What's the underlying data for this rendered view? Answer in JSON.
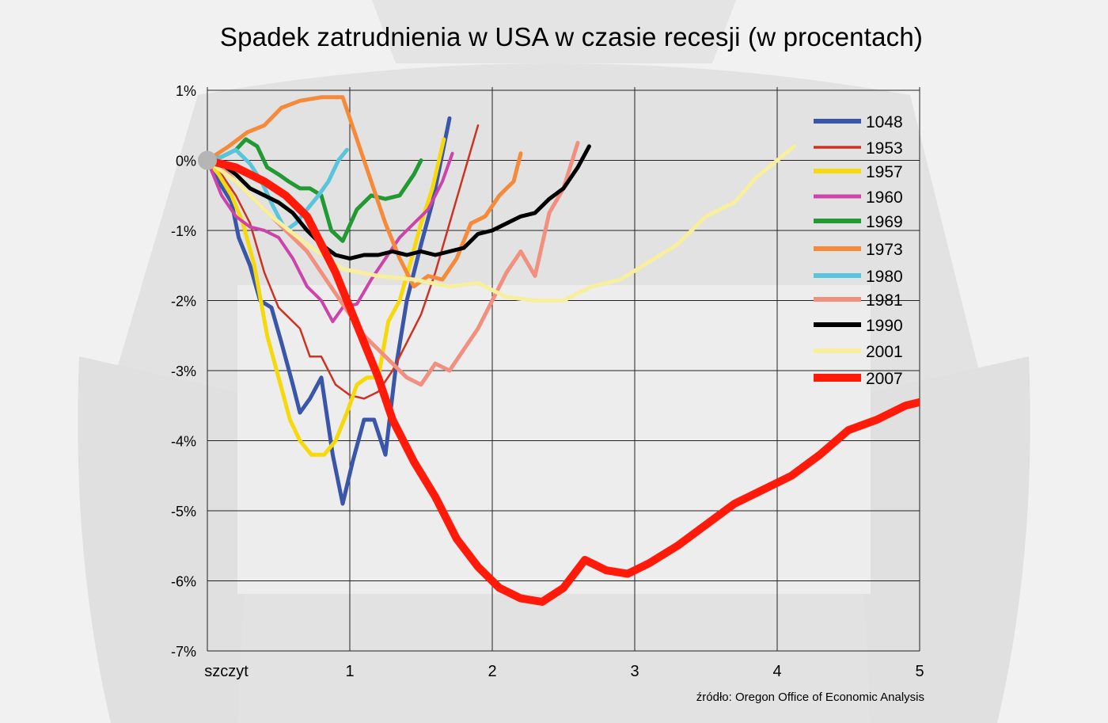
{
  "title": "Spadek zatrudnienia w USA w czasie recesji (w procentach)",
  "source": "źródło: Oregon Office of Economic Analysis",
  "chart_data": {
    "type": "line",
    "title": "Spadek zatrudnienia w USA w czasie recesji (w procentach)",
    "xlim": [
      0,
      5
    ],
    "ylim": [
      -7,
      1
    ],
    "x_ticks": [
      {
        "value": 0,
        "label": "szczyt"
      },
      {
        "value": 1,
        "label": "1"
      },
      {
        "value": 2,
        "label": "2"
      },
      {
        "value": 3,
        "label": "3"
      },
      {
        "value": 4,
        "label": "4"
      },
      {
        "value": 5,
        "label": "5"
      }
    ],
    "y_ticks": [
      {
        "value": 1,
        "label": "1%"
      },
      {
        "value": 0,
        "label": "0%"
      },
      {
        "value": -1,
        "label": "-1%"
      },
      {
        "value": -2,
        "label": "-2%"
      },
      {
        "value": -3,
        "label": "-3%"
      },
      {
        "value": -4,
        "label": "-4%"
      },
      {
        "value": -5,
        "label": "-5%"
      },
      {
        "value": -6,
        "label": "-6%"
      },
      {
        "value": -7,
        "label": "-7%"
      }
    ],
    "grid": true,
    "legend_position": "top-right",
    "series": [
      {
        "name": "1048",
        "color": "#3a56a8",
        "width": 5,
        "points": [
          [
            0,
            0
          ],
          [
            0.08,
            -0.3
          ],
          [
            0.17,
            -0.6
          ],
          [
            0.22,
            -1.1
          ],
          [
            0.3,
            -1.5
          ],
          [
            0.37,
            -2.0
          ],
          [
            0.45,
            -2.1
          ],
          [
            0.52,
            -2.6
          ],
          [
            0.6,
            -3.2
          ],
          [
            0.65,
            -3.6
          ],
          [
            0.72,
            -3.4
          ],
          [
            0.8,
            -3.1
          ],
          [
            0.88,
            -4.2
          ],
          [
            0.95,
            -4.9
          ],
          [
            1.02,
            -4.3
          ],
          [
            1.1,
            -3.7
          ],
          [
            1.17,
            -3.7
          ],
          [
            1.25,
            -4.2
          ],
          [
            1.32,
            -3.0
          ],
          [
            1.4,
            -2.0
          ],
          [
            1.5,
            -1.2
          ],
          [
            1.58,
            -0.6
          ],
          [
            1.66,
            0.2
          ],
          [
            1.7,
            0.6
          ]
        ]
      },
      {
        "name": "1953",
        "color": "#cc3322",
        "width": 2.5,
        "points": [
          [
            0,
            0
          ],
          [
            0.1,
            -0.2
          ],
          [
            0.2,
            -0.5
          ],
          [
            0.3,
            -0.9
          ],
          [
            0.4,
            -1.6
          ],
          [
            0.5,
            -2.1
          ],
          [
            0.55,
            -2.2
          ],
          [
            0.65,
            -2.4
          ],
          [
            0.72,
            -2.8
          ],
          [
            0.8,
            -2.8
          ],
          [
            0.9,
            -3.2
          ],
          [
            1.0,
            -3.35
          ],
          [
            1.1,
            -3.4
          ],
          [
            1.2,
            -3.3
          ],
          [
            1.3,
            -3.0
          ],
          [
            1.4,
            -2.6
          ],
          [
            1.5,
            -2.2
          ],
          [
            1.6,
            -1.6
          ],
          [
            1.7,
            -0.9
          ],
          [
            1.8,
            -0.2
          ],
          [
            1.9,
            0.5
          ]
        ]
      },
      {
        "name": "1957",
        "color": "#f5d90d",
        "width": 5,
        "points": [
          [
            0,
            0
          ],
          [
            0.08,
            -0.2
          ],
          [
            0.17,
            -0.5
          ],
          [
            0.25,
            -0.9
          ],
          [
            0.33,
            -1.5
          ],
          [
            0.42,
            -2.5
          ],
          [
            0.5,
            -3.1
          ],
          [
            0.58,
            -3.7
          ],
          [
            0.65,
            -4.0
          ],
          [
            0.73,
            -4.2
          ],
          [
            0.82,
            -4.2
          ],
          [
            0.9,
            -4.0
          ],
          [
            0.98,
            -3.6
          ],
          [
            1.05,
            -3.2
          ],
          [
            1.12,
            -3.1
          ],
          [
            1.2,
            -3.1
          ],
          [
            1.27,
            -2.3
          ],
          [
            1.35,
            -2.0
          ],
          [
            1.42,
            -1.5
          ],
          [
            1.5,
            -0.9
          ],
          [
            1.58,
            -0.4
          ],
          [
            1.66,
            0.3
          ]
        ]
      },
      {
        "name": "1960",
        "color": "#cc44aa",
        "width": 4,
        "points": [
          [
            0,
            0
          ],
          [
            0.1,
            -0.5
          ],
          [
            0.2,
            -0.8
          ],
          [
            0.3,
            -0.95
          ],
          [
            0.4,
            -1.0
          ],
          [
            0.5,
            -1.1
          ],
          [
            0.6,
            -1.4
          ],
          [
            0.7,
            -1.8
          ],
          [
            0.8,
            -2.0
          ],
          [
            0.88,
            -2.3
          ],
          [
            0.95,
            -2.1
          ],
          [
            1.05,
            -2.05
          ],
          [
            1.15,
            -1.7
          ],
          [
            1.25,
            -1.4
          ],
          [
            1.35,
            -1.1
          ],
          [
            1.45,
            -0.9
          ],
          [
            1.55,
            -0.7
          ],
          [
            1.65,
            -0.3
          ],
          [
            1.72,
            0.1
          ]
        ]
      },
      {
        "name": "1969",
        "color": "#229933",
        "width": 5,
        "points": [
          [
            0,
            0
          ],
          [
            0.1,
            0.05
          ],
          [
            0.2,
            0.15
          ],
          [
            0.27,
            0.3
          ],
          [
            0.35,
            0.2
          ],
          [
            0.42,
            -0.1
          ],
          [
            0.5,
            -0.2
          ],
          [
            0.57,
            -0.3
          ],
          [
            0.65,
            -0.4
          ],
          [
            0.72,
            -0.4
          ],
          [
            0.8,
            -0.5
          ],
          [
            0.87,
            -1.0
          ],
          [
            0.95,
            -1.15
          ],
          [
            1.05,
            -0.7
          ],
          [
            1.15,
            -0.5
          ],
          [
            1.25,
            -0.55
          ],
          [
            1.35,
            -0.5
          ],
          [
            1.45,
            -0.2
          ],
          [
            1.5,
            0.0
          ]
        ]
      },
      {
        "name": "1973",
        "color": "#f58a3a",
        "width": 5,
        "points": [
          [
            0,
            0
          ],
          [
            0.15,
            0.2
          ],
          [
            0.28,
            0.4
          ],
          [
            0.4,
            0.5
          ],
          [
            0.52,
            0.75
          ],
          [
            0.65,
            0.85
          ],
          [
            0.8,
            0.9
          ],
          [
            0.95,
            0.9
          ],
          [
            1.05,
            0.3
          ],
          [
            1.15,
            -0.3
          ],
          [
            1.25,
            -0.9
          ],
          [
            1.35,
            -1.4
          ],
          [
            1.45,
            -1.8
          ],
          [
            1.55,
            -1.65
          ],
          [
            1.65,
            -1.7
          ],
          [
            1.75,
            -1.4
          ],
          [
            1.85,
            -0.9
          ],
          [
            1.95,
            -0.8
          ],
          [
            2.05,
            -0.5
          ],
          [
            2.15,
            -0.3
          ],
          [
            2.2,
            0.1
          ]
        ]
      },
      {
        "name": "1980",
        "color": "#5bc4dd",
        "width": 5,
        "points": [
          [
            0,
            0
          ],
          [
            0.1,
            0.05
          ],
          [
            0.2,
            0.15
          ],
          [
            0.3,
            -0.05
          ],
          [
            0.38,
            -0.3
          ],
          [
            0.46,
            -0.65
          ],
          [
            0.55,
            -1.0
          ],
          [
            0.62,
            -0.9
          ],
          [
            0.7,
            -0.7
          ],
          [
            0.78,
            -0.5
          ],
          [
            0.85,
            -0.3
          ],
          [
            0.92,
            0.0
          ],
          [
            0.98,
            0.15
          ]
        ]
      },
      {
        "name": "1981",
        "color": "#f29080",
        "width": 5,
        "points": [
          [
            0,
            0
          ],
          [
            0.1,
            -0.1
          ],
          [
            0.2,
            -0.3
          ],
          [
            0.3,
            -0.5
          ],
          [
            0.4,
            -0.7
          ],
          [
            0.5,
            -0.9
          ],
          [
            0.6,
            -1.1
          ],
          [
            0.7,
            -1.3
          ],
          [
            0.8,
            -1.6
          ],
          [
            0.9,
            -1.9
          ],
          [
            1.0,
            -2.2
          ],
          [
            1.1,
            -2.5
          ],
          [
            1.2,
            -2.7
          ],
          [
            1.3,
            -2.9
          ],
          [
            1.4,
            -3.1
          ],
          [
            1.5,
            -3.2
          ],
          [
            1.6,
            -2.9
          ],
          [
            1.7,
            -3.0
          ],
          [
            1.8,
            -2.7
          ],
          [
            1.9,
            -2.4
          ],
          [
            2.0,
            -2.0
          ],
          [
            2.1,
            -1.6
          ],
          [
            2.2,
            -1.3
          ],
          [
            2.3,
            -1.65
          ],
          [
            2.4,
            -0.75
          ],
          [
            2.5,
            -0.4
          ],
          [
            2.6,
            0.25
          ]
        ]
      },
      {
        "name": "1990",
        "color": "#000000",
        "width": 5,
        "points": [
          [
            0,
            0
          ],
          [
            0.1,
            -0.05
          ],
          [
            0.2,
            -0.2
          ],
          [
            0.3,
            -0.4
          ],
          [
            0.4,
            -0.5
          ],
          [
            0.5,
            -0.6
          ],
          [
            0.6,
            -0.75
          ],
          [
            0.7,
            -1.0
          ],
          [
            0.8,
            -1.2
          ],
          [
            0.9,
            -1.35
          ],
          [
            1.0,
            -1.4
          ],
          [
            1.1,
            -1.35
          ],
          [
            1.2,
            -1.35
          ],
          [
            1.3,
            -1.3
          ],
          [
            1.4,
            -1.35
          ],
          [
            1.5,
            -1.3
          ],
          [
            1.6,
            -1.35
          ],
          [
            1.7,
            -1.3
          ],
          [
            1.8,
            -1.25
          ],
          [
            1.9,
            -1.05
          ],
          [
            2.0,
            -1.0
          ],
          [
            2.1,
            -0.9
          ],
          [
            2.2,
            -0.8
          ],
          [
            2.3,
            -0.75
          ],
          [
            2.4,
            -0.55
          ],
          [
            2.5,
            -0.4
          ],
          [
            2.6,
            -0.1
          ],
          [
            2.68,
            0.2
          ]
        ]
      },
      {
        "name": "2001",
        "color": "#f7ee9e",
        "width": 5,
        "points": [
          [
            0,
            0
          ],
          [
            0.2,
            -0.3
          ],
          [
            0.45,
            -0.8
          ],
          [
            0.7,
            -1.2
          ],
          [
            0.95,
            -1.55
          ],
          [
            1.2,
            -1.65
          ],
          [
            1.45,
            -1.7
          ],
          [
            1.7,
            -1.8
          ],
          [
            1.9,
            -1.75
          ],
          [
            2.1,
            -1.95
          ],
          [
            2.3,
            -2.0
          ],
          [
            2.5,
            -2.0
          ],
          [
            2.7,
            -1.8
          ],
          [
            2.9,
            -1.7
          ],
          [
            3.1,
            -1.45
          ],
          [
            3.3,
            -1.2
          ],
          [
            3.5,
            -0.8
          ],
          [
            3.7,
            -0.6
          ],
          [
            3.85,
            -0.25
          ],
          [
            4.0,
            0.0
          ],
          [
            4.12,
            0.2
          ]
        ]
      },
      {
        "name": "2007",
        "color": "#ff1a0a",
        "width": 10,
        "points": [
          [
            0,
            0
          ],
          [
            0.2,
            -0.1
          ],
          [
            0.4,
            -0.3
          ],
          [
            0.55,
            -0.5
          ],
          [
            0.7,
            -0.8
          ],
          [
            0.8,
            -1.2
          ],
          [
            0.9,
            -1.6
          ],
          [
            1.0,
            -2.1
          ],
          [
            1.1,
            -2.6
          ],
          [
            1.2,
            -3.1
          ],
          [
            1.3,
            -3.7
          ],
          [
            1.45,
            -4.3
          ],
          [
            1.6,
            -4.8
          ],
          [
            1.75,
            -5.4
          ],
          [
            1.9,
            -5.8
          ],
          [
            2.05,
            -6.1
          ],
          [
            2.2,
            -6.25
          ],
          [
            2.35,
            -6.3
          ],
          [
            2.5,
            -6.1
          ],
          [
            2.65,
            -5.7
          ],
          [
            2.8,
            -5.85
          ],
          [
            2.95,
            -5.9
          ],
          [
            3.1,
            -5.75
          ],
          [
            3.3,
            -5.5
          ],
          [
            3.5,
            -5.2
          ],
          [
            3.7,
            -4.9
          ],
          [
            3.9,
            -4.7
          ],
          [
            4.1,
            -4.5
          ],
          [
            4.3,
            -4.2
          ],
          [
            4.5,
            -3.85
          ],
          [
            4.7,
            -3.7
          ],
          [
            4.9,
            -3.5
          ],
          [
            5.1,
            -3.4
          ]
        ]
      }
    ]
  }
}
